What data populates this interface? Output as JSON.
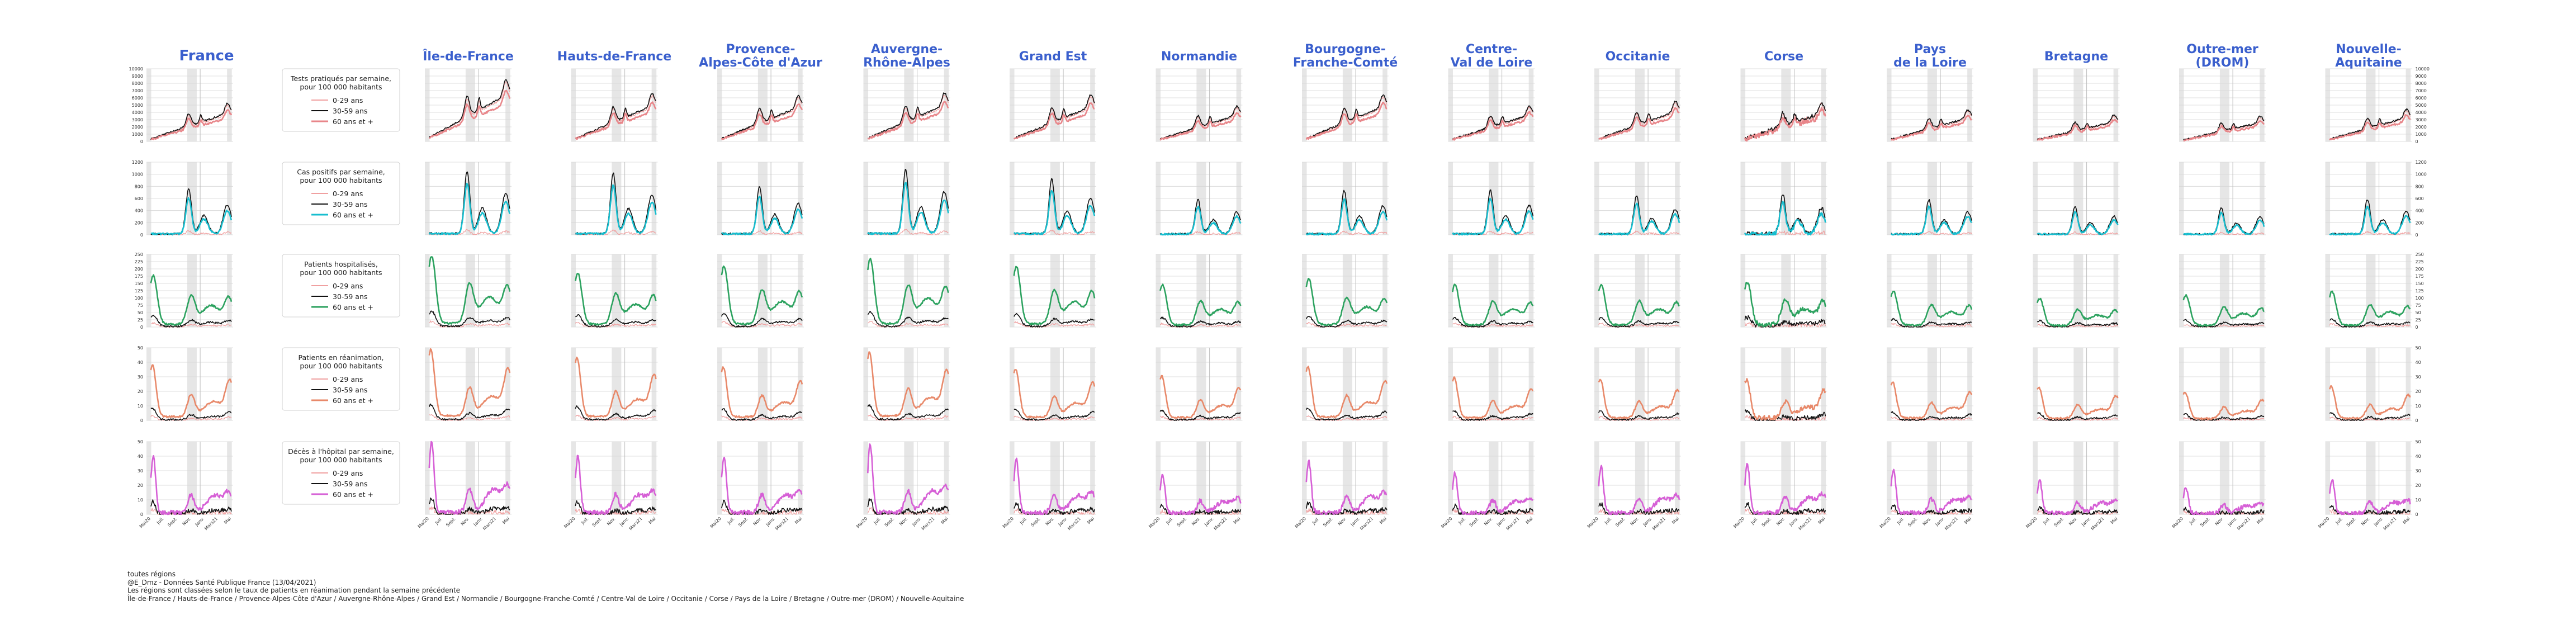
{
  "chart_data": {
    "type": "line",
    "x_tick_labels": [
      "Mai20",
      "Juil.",
      "Sept.",
      "Nov.",
      "Janv.",
      "Mars21",
      "Mai"
    ],
    "columns": [
      {
        "id": "france",
        "title": "France"
      },
      {
        "id": "idf",
        "title": "Île-de-France"
      },
      {
        "id": "hdf",
        "title": "Hauts-de-France"
      },
      {
        "id": "paca",
        "title": "Provence-\nAlpes-Côte d'Azur"
      },
      {
        "id": "ara",
        "title": "Auvergne-\nRhône-Alpes"
      },
      {
        "id": "ge",
        "title": "Grand Est"
      },
      {
        "id": "nor",
        "title": "Normandie"
      },
      {
        "id": "bfc",
        "title": "Bourgogne-\nFranche-Comté"
      },
      {
        "id": "cvl",
        "title": "Centre-\nVal de Loire"
      },
      {
        "id": "occ",
        "title": "Occitanie"
      },
      {
        "id": "cor",
        "title": "Corse"
      },
      {
        "id": "pdl",
        "title": "Pays\nde la Loire"
      },
      {
        "id": "bre",
        "title": "Bretagne"
      },
      {
        "id": "om",
        "title": "Outre-mer\n(DROM)"
      },
      {
        "id": "naq",
        "title": "Nouvelle-\nAquitaine"
      }
    ],
    "rows": [
      {
        "id": "tests",
        "label": "Tests pratiqués par semaine,\npour 100 000 habitants",
        "accent": "#e8868a",
        "y_ticks": [
          0,
          1000,
          2000,
          3000,
          4000,
          5000,
          6000,
          7000,
          8000,
          9000,
          10000
        ]
      },
      {
        "id": "cas",
        "label": "Cas positifs par semaine,\npour 100 000 habitants",
        "accent": "#17becf",
        "y_ticks": [
          0,
          200,
          400,
          600,
          800,
          1000,
          1200
        ]
      },
      {
        "id": "hosp",
        "label": "Patients hospitalisés,\npour 100 000 habitants",
        "accent": "#2ca25f",
        "y_ticks": [
          0,
          25,
          50,
          75,
          100,
          125,
          150,
          175,
          200,
          225,
          250
        ]
      },
      {
        "id": "rea",
        "label": "Patients en réanimation,\npour 100 000 habitants",
        "accent": "#e8896a",
        "y_ticks": [
          0,
          10,
          20,
          30,
          40,
          50
        ]
      },
      {
        "id": "dc",
        "label": "Décès à l'hôpital par semaine,\npour 100 000 habitants",
        "accent": "#d65fd6",
        "y_ticks": [
          0,
          10,
          20,
          30,
          40,
          50
        ]
      }
    ],
    "legend_ages": [
      "0-29 ans",
      "30-59 ans",
      "60 ans et +"
    ],
    "age_colors": [
      "#f0a0a0",
      "#111111",
      "accent"
    ]
  },
  "footer": {
    "line1": "toutes régions",
    "line2": "@E_Dmz - Données Santé Publique France (13/04/2021)",
    "line3": "Les régions sont classées selon le taux de patients en réanimation pendant la semaine précédente",
    "line4": "Île-de-France / Hauts-de-France / Provence-Alpes-Côte d'Azur / Auvergne-Rhône-Alpes / Grand Est / Normandie / Bourgogne-Franche-Comté / Centre-Val de Loire / Occitanie / Corse / Pays de la Loire / Bretagne / Outre-mer (DROM) / Nouvelle-Aquitaine"
  },
  "colors": {
    "title": "#3a5fcd",
    "confinement": "#e6e6e6",
    "grid": "#d4d4d4"
  }
}
